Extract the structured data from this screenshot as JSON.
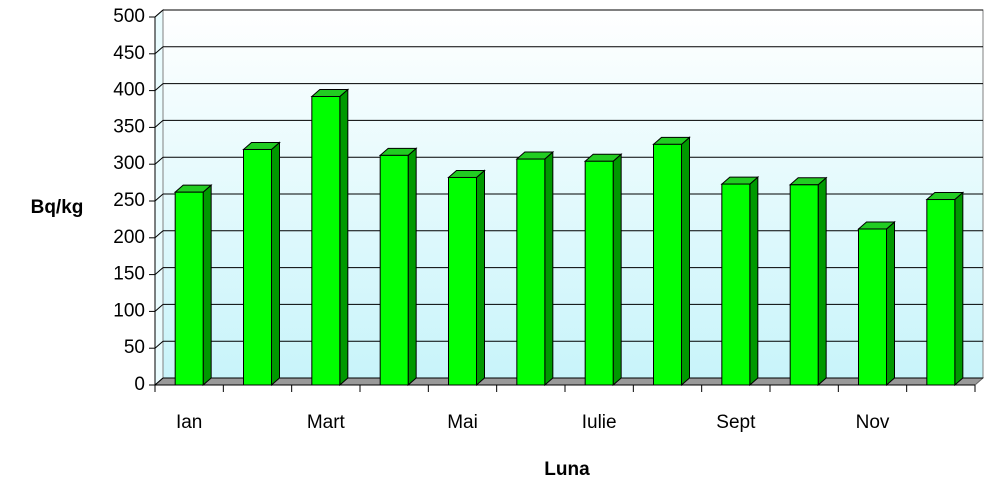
{
  "chart_data": {
    "type": "bar",
    "xlabel": "Luna",
    "ylabel": "Bq/kg",
    "categories": [
      "Ian",
      null,
      "Mart",
      null,
      "Mai",
      null,
      "Iulie",
      null,
      "Sept",
      null,
      "Nov",
      null
    ],
    "values": [
      262,
      320,
      392,
      312,
      282,
      307,
      304,
      327,
      273,
      272,
      212,
      252
    ],
    "color": "#00ff00",
    "ylim": [
      0,
      500
    ],
    "yticks": [
      0,
      50,
      100,
      150,
      200,
      250,
      300,
      350,
      400,
      450,
      500
    ],
    "grid": true
  }
}
